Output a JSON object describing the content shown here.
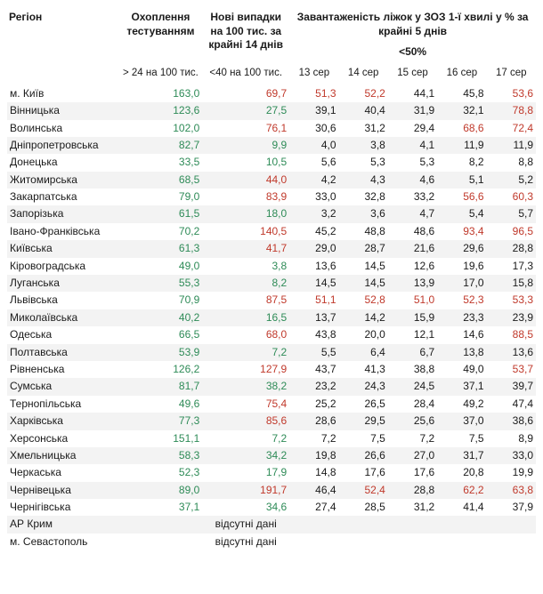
{
  "colors": {
    "black": "#1a1a1a",
    "green": "#2e8b57",
    "red": "#c0392b",
    "row_stripe": "#f3f3f3",
    "background": "#ffffff"
  },
  "threshold": {
    "cases_red_min": 40,
    "bed_red_min": 50
  },
  "headers": {
    "region": "Регіон",
    "testing": "Охоплення тестуванням",
    "cases": "Нові випадки на 100 тис. за крайні 14 днів",
    "beds": "Завантаженість ліжок у ЗОЗ 1-ї хвилі у % за крайні 5 днів",
    "beds_sub": "<50%",
    "testing_crit": "> 24 на 100 тис.",
    "cases_crit": "<40 на 100 тис.",
    "days": [
      "13 сер",
      "14 сер",
      "15 сер",
      "16 сер",
      "17 сер"
    ]
  },
  "nodata_label": "відсутні дані",
  "rows": [
    {
      "region": "м. Київ",
      "testing": "163,0",
      "cases": "69,7",
      "beds": [
        "51,3",
        "52,2",
        "44,1",
        "45,8",
        "53,6"
      ]
    },
    {
      "region": "Вінницька",
      "testing": "123,6",
      "cases": "27,5",
      "beds": [
        "39,1",
        "40,4",
        "31,9",
        "32,1",
        "78,8"
      ]
    },
    {
      "region": "Волинська",
      "testing": "102,0",
      "cases": "76,1",
      "beds": [
        "30,6",
        "31,2",
        "29,4",
        "68,6",
        "72,4"
      ]
    },
    {
      "region": "Дніпропетровська",
      "testing": "82,7",
      "cases": "9,9",
      "beds": [
        "4,0",
        "3,8",
        "4,1",
        "11,9",
        "11,9"
      ]
    },
    {
      "region": "Донецька",
      "testing": "33,5",
      "cases": "10,5",
      "beds": [
        "5,6",
        "5,3",
        "5,3",
        "8,2",
        "8,8"
      ]
    },
    {
      "region": "Житомирська",
      "testing": "68,5",
      "cases": "44,0",
      "beds": [
        "4,2",
        "4,3",
        "4,6",
        "5,1",
        "5,2"
      ]
    },
    {
      "region": "Закарпатська",
      "testing": "79,0",
      "cases": "83,9",
      "beds": [
        "33,0",
        "32,8",
        "33,2",
        "56,6",
        "60,3"
      ]
    },
    {
      "region": "Запорізька",
      "testing": "61,5",
      "cases": "18,0",
      "beds": [
        "3,2",
        "3,6",
        "4,7",
        "5,4",
        "5,7"
      ]
    },
    {
      "region": "Івано-Франківська",
      "testing": "70,2",
      "cases": "140,5",
      "beds": [
        "45,2",
        "48,8",
        "48,6",
        "93,4",
        "96,5"
      ]
    },
    {
      "region": "Київська",
      "testing": "61,3",
      "cases": "41,7",
      "beds": [
        "29,0",
        "28,7",
        "21,6",
        "29,6",
        "28,8"
      ]
    },
    {
      "region": "Кіровоградська",
      "testing": "49,0",
      "cases": "3,8",
      "beds": [
        "13,6",
        "14,5",
        "12,6",
        "19,6",
        "17,3"
      ]
    },
    {
      "region": "Луганська",
      "testing": "55,3",
      "cases": "8,2",
      "beds": [
        "14,5",
        "14,5",
        "13,9",
        "17,0",
        "15,8"
      ]
    },
    {
      "region": "Львівська",
      "testing": "70,9",
      "cases": "87,5",
      "beds": [
        "51,1",
        "52,8",
        "51,0",
        "52,3",
        "53,3"
      ]
    },
    {
      "region": "Миколаївська",
      "testing": "40,2",
      "cases": "16,5",
      "beds": [
        "13,7",
        "14,2",
        "15,9",
        "23,3",
        "23,9"
      ]
    },
    {
      "region": "Одеська",
      "testing": "66,5",
      "cases": "68,0",
      "beds": [
        "43,8",
        "20,0",
        "12,1",
        "14,6",
        "88,5"
      ]
    },
    {
      "region": "Полтавська",
      "testing": "53,9",
      "cases": "7,2",
      "beds": [
        "5,5",
        "6,4",
        "6,7",
        "13,8",
        "13,6"
      ]
    },
    {
      "region": "Рівненська",
      "testing": "126,2",
      "cases": "127,9",
      "beds": [
        "43,7",
        "41,3",
        "38,8",
        "49,0",
        "53,7"
      ]
    },
    {
      "region": "Сумська",
      "testing": "81,7",
      "cases": "38,2",
      "beds": [
        "23,2",
        "24,3",
        "24,5",
        "37,1",
        "39,7"
      ]
    },
    {
      "region": "Тернопільська",
      "testing": "49,6",
      "cases": "75,4",
      "beds": [
        "25,2",
        "26,5",
        "28,4",
        "49,2",
        "47,4"
      ]
    },
    {
      "region": "Харківська",
      "testing": "77,3",
      "cases": "85,6",
      "beds": [
        "28,6",
        "29,5",
        "25,6",
        "37,0",
        "38,6"
      ]
    },
    {
      "region": "Херсонська",
      "testing": "151,1",
      "cases": "7,2",
      "beds": [
        "7,2",
        "7,5",
        "7,2",
        "7,5",
        "8,9"
      ]
    },
    {
      "region": "Хмельницька",
      "testing": "58,3",
      "cases": "34,2",
      "beds": [
        "19,8",
        "26,6",
        "27,0",
        "31,7",
        "33,0"
      ]
    },
    {
      "region": "Черкаська",
      "testing": "52,3",
      "cases": "17,9",
      "beds": [
        "14,8",
        "17,6",
        "17,6",
        "20,8",
        "19,9"
      ]
    },
    {
      "region": "Чернівецька",
      "testing": "89,0",
      "cases": "191,7",
      "beds": [
        "46,4",
        "52,4",
        "28,8",
        "62,2",
        "63,8"
      ]
    },
    {
      "region": "Чернігівська",
      "testing": "37,1",
      "cases": "34,6",
      "beds": [
        "27,4",
        "28,5",
        "31,2",
        "41,4",
        "37,9"
      ]
    },
    {
      "region": "АР Крим",
      "nodata": true
    },
    {
      "region": "м. Севастополь",
      "nodata": true
    }
  ]
}
